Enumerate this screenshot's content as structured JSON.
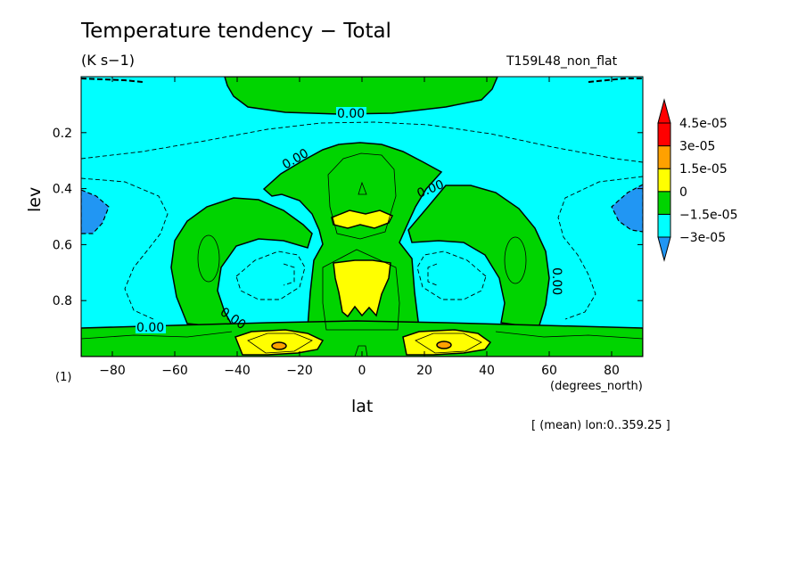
{
  "chart_data": {
    "type": "heatmap",
    "title": "Temperature tendency − Total",
    "units": "(K s−1)",
    "run_name": "T159L48_non_flat",
    "figure_number": "(1)",
    "xlabel": "lat",
    "x_units": "(degrees_north)",
    "ylabel": "lev",
    "mean_note": "[ (mean) lon:0..359.25 ]",
    "xlim": [
      -90,
      90
    ],
    "ylim": [
      1.0,
      0.0
    ],
    "y_inverted": true,
    "x_ticks": [
      -80,
      -60,
      -40,
      -20,
      0,
      20,
      40,
      60,
      80
    ],
    "x_tick_labels": [
      "−80",
      "−60",
      "−40",
      "−20",
      "0",
      "20",
      "40",
      "60",
      "80"
    ],
    "y_ticks": [
      0.2,
      0.4,
      0.6,
      0.8
    ],
    "y_tick_labels": [
      "0.2",
      "0.4",
      "0.6",
      "0.8"
    ],
    "contour_label": "0.00",
    "colorbar": {
      "levels": [
        -3e-05,
        -1.5e-05,
        0,
        1.5e-05,
        3e-05,
        4.5e-05
      ],
      "labels": [
        "−3e-05",
        "−1.5e-05",
        "0",
        "1.5e-05",
        "3e-05",
        "4.5e-05"
      ],
      "colors": [
        "#2196f3",
        "#00ffff",
        "#00d400",
        "#ffff00",
        "#ffa100",
        "#ff0000"
      ],
      "extend": "both"
    },
    "regions": [
      {
        "value_range": [
          -1.5e-05,
          0
        ],
        "description": "background"
      },
      {
        "value_range": [
          0,
          1.5e-05
        ],
        "description": "positive lobes"
      },
      {
        "value_range": [
          1.5e-05,
          3e-05
        ],
        "description": "near-surface subtropics and equatorial mid-levels"
      },
      {
        "value_range": [
          3e-05,
          4.5e-05
        ],
        "description": "cores near lat ±25, lev 0.95"
      },
      {
        "value_range": [
          -3e-05,
          -1.5e-05
        ],
        "description": "polar mid-levels near lev 0.45"
      }
    ]
  },
  "colors": {
    "background": "#00ffff",
    "green": "#00d400",
    "yellow": "#ffff00",
    "orange": "#ffa100",
    "blue": "#2196f3",
    "red": "#ff0000"
  }
}
